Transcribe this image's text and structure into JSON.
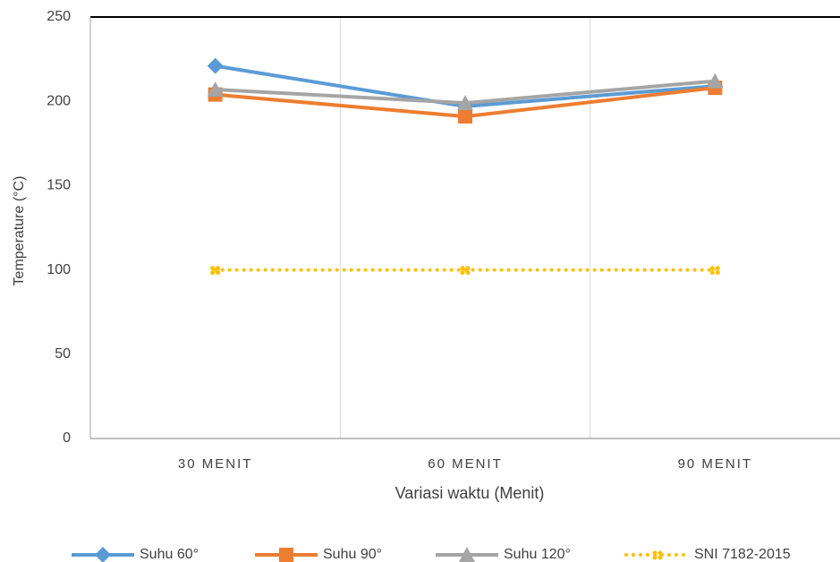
{
  "chart_data": {
    "type": "line",
    "x_label": "Variasi waktu (Menit)",
    "y_label": "Temperature (°C)",
    "categories": [
      "30 MENIT",
      "60 MENIT",
      "90 MENIT"
    ],
    "series": [
      {
        "name": "Suhu 60°",
        "color": "#5b9bd5",
        "marker": "diamond",
        "dash": "solid",
        "values": [
          221,
          197,
          209
        ]
      },
      {
        "name": "Suhu 90°",
        "color": "#ed7d31",
        "marker": "square",
        "dash": "solid",
        "values": [
          204,
          191,
          208
        ]
      },
      {
        "name": "Suhu 120°",
        "color": "#a5a5a5",
        "marker": "triangle",
        "dash": "solid",
        "values": [
          207,
          199,
          212
        ]
      },
      {
        "name": "SNI 7182-2015",
        "color": "#ffc000",
        "marker": "diamond",
        "dash": "dotted",
        "values": [
          100,
          100,
          100
        ]
      }
    ],
    "ylim": [
      0,
      250
    ],
    "yticks": [
      0,
      50,
      100,
      150,
      200,
      250
    ],
    "grid": "x",
    "legend": "bottom"
  }
}
